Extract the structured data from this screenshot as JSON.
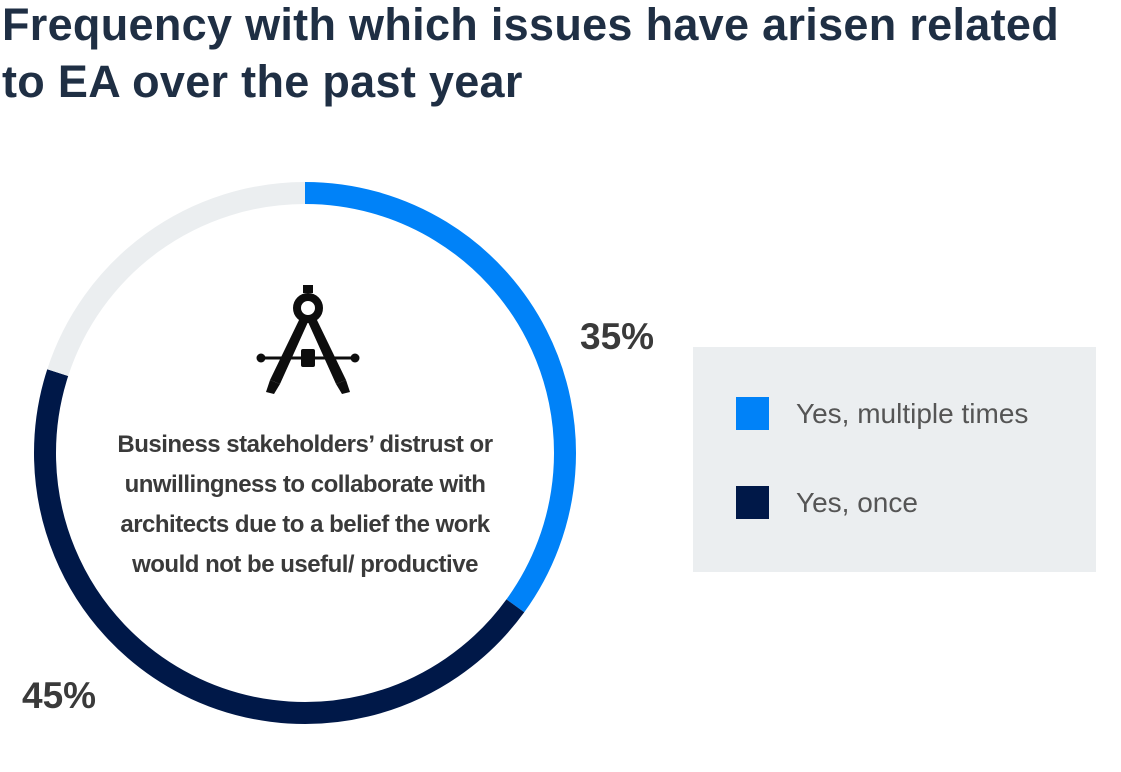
{
  "chart_data": {
    "type": "pie",
    "title": "Frequency with which issues have arisen related to EA over the past year",
    "center_label": "Business stakeholders’ distrust or unwillingness to collaborate with architects due to a belief the work would not be useful/ productive",
    "center_icon": "drafting-compass-icon",
    "series": [
      {
        "name": "Yes, multiple times",
        "value": 35,
        "label": "35%",
        "color": "#0082f8"
      },
      {
        "name": "Yes, once",
        "value": 45,
        "label": "45%",
        "color": "#001848"
      },
      {
        "value": 20,
        "color": "#ebeef0"
      }
    ],
    "legend": {
      "placement": "right",
      "entries": [
        "Yes, multiple times",
        "Yes, once"
      ]
    }
  }
}
